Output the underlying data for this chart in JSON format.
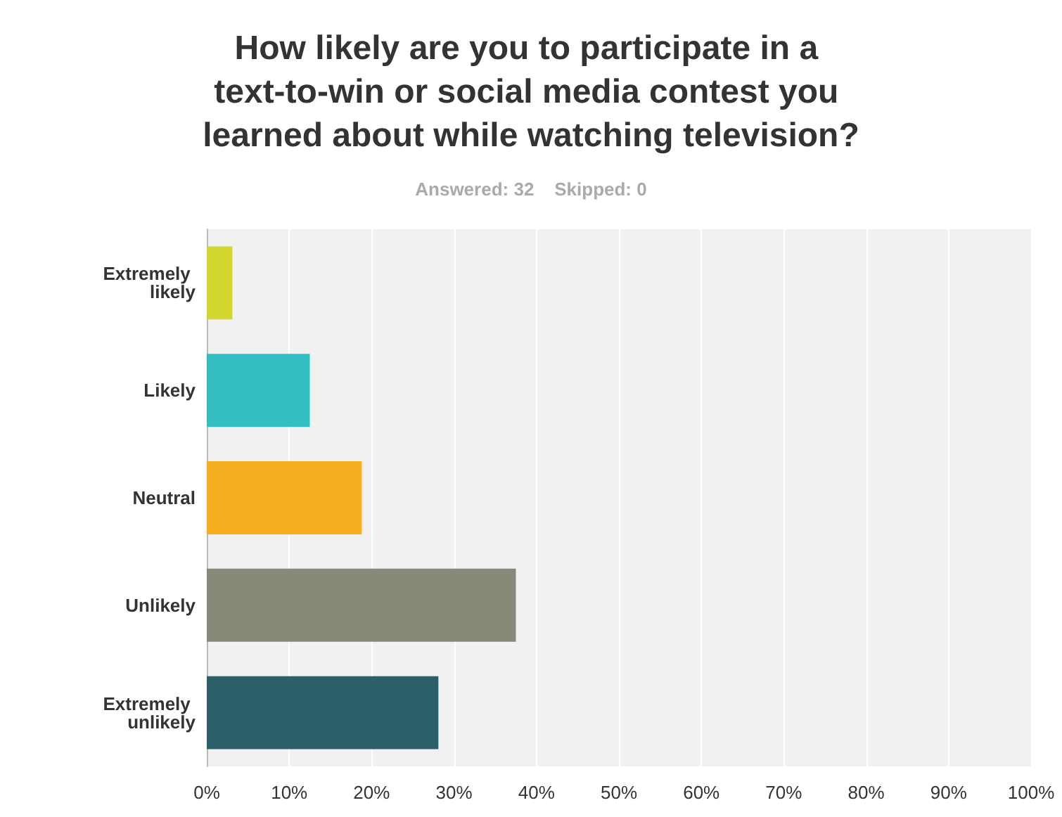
{
  "chart_data": {
    "type": "bar",
    "orientation": "horizontal",
    "title": "How likely are you to participate in a text-to-win or social media contest you learned about while watching television?",
    "subtitle": "Answered: 32    Skipped: 0",
    "categories": [
      "Extremely likely",
      "Likely",
      "Neutral",
      "Unlikely",
      "Extremely unlikely"
    ],
    "values": [
      3.1,
      12.5,
      18.8,
      37.5,
      28.1
    ],
    "colors": [
      "#d2d62c",
      "#33bfc1",
      "#f7ae1f",
      "#878a79",
      "#2d5f6b"
    ],
    "xlim": [
      0,
      100
    ],
    "xticks": [
      {
        "value": 0,
        "label": "0%"
      },
      {
        "value": 10,
        "label": "10%"
      },
      {
        "value": 20,
        "label": "20%"
      },
      {
        "value": 30,
        "label": "30%"
      },
      {
        "value": 40,
        "label": "40%"
      },
      {
        "value": 50,
        "label": "50%"
      },
      {
        "value": 60,
        "label": "60%"
      },
      {
        "value": 70,
        "label": "70%"
      },
      {
        "value": 80,
        "label": "80%"
      },
      {
        "value": 90,
        "label": "90%"
      },
      {
        "value": 100,
        "label": "100%"
      }
    ],
    "grid": "x"
  }
}
